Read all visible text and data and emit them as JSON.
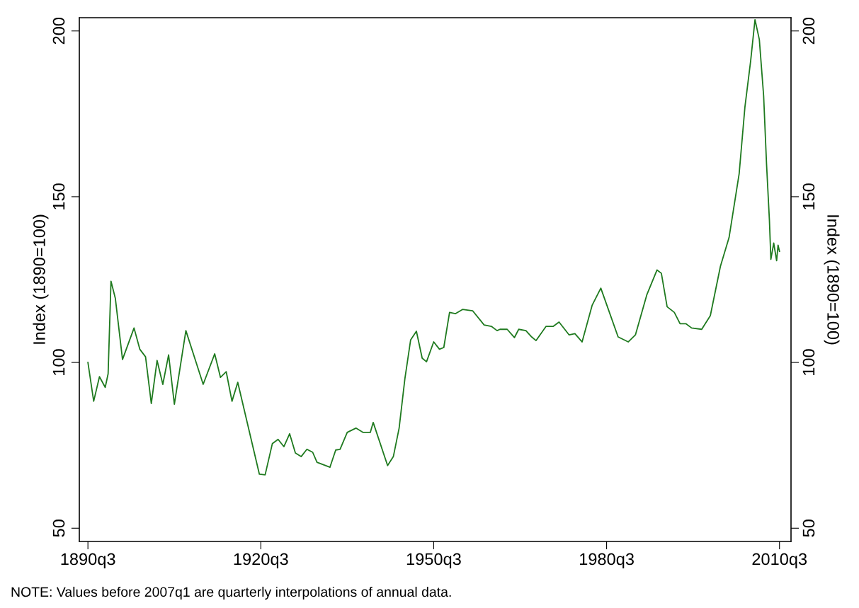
{
  "chart_data": {
    "type": "line",
    "ylabel": "Index (1890=100)",
    "y2label": "Index (1890=100)",
    "xlim": [
      "1889-01",
      "2012-07"
    ],
    "xticks": [
      {
        "value": "1890-07",
        "label": "1890q3"
      },
      {
        "value": "1920-07",
        "label": "1920q3"
      },
      {
        "value": "1950-07",
        "label": "1950q3"
      },
      {
        "value": "1980-07",
        "label": "1980q3"
      },
      {
        "value": "2010-07",
        "label": "2010q3"
      }
    ],
    "ylim": [
      46,
      204
    ],
    "yticks": [
      50,
      100,
      150,
      200
    ],
    "y2lim": [
      46,
      204
    ],
    "y2ticks": [
      50,
      100,
      150,
      200
    ],
    "grid": false,
    "legend": false,
    "marker": "none",
    "line_style": "solid",
    "annotations": [
      "NOTE: Values before 2007q1 are quarterly interpolations of annual data."
    ],
    "series": [
      {
        "color": "#1f7a1f",
        "x": [
          "1890-07",
          "1891-07",
          "1892-07",
          "1893-07",
          "1894-01",
          "1894-07",
          "1895-04",
          "1896-07",
          "1898-07",
          "1899-07",
          "1900-07",
          "1901-07",
          "1902-07",
          "1903-07",
          "1904-07",
          "1905-07",
          "1907-07",
          "1910-07",
          "1912-07",
          "1913-07",
          "1914-07",
          "1915-07",
          "1916-07",
          "1920-04",
          "1921-04",
          "1922-07",
          "1923-07",
          "1924-07",
          "1925-07",
          "1926-07",
          "1927-07",
          "1928-07",
          "1929-07",
          "1930-04",
          "1932-07",
          "1933-07",
          "1934-04",
          "1935-07",
          "1937-01",
          "1938-04",
          "1939-07",
          "1940-01",
          "1942-07",
          "1943-07",
          "1944-07",
          "1945-07",
          "1946-07",
          "1947-07",
          "1948-07",
          "1949-04",
          "1950-07",
          "1951-07",
          "1952-04",
          "1953-04",
          "1954-04",
          "1955-07",
          "1957-04",
          "1959-04",
          "1960-07",
          "1961-07",
          "1962-01",
          "1963-04",
          "1964-07",
          "1965-04",
          "1966-07",
          "1967-07",
          "1968-04",
          "1970-01",
          "1971-04",
          "1972-04",
          "1974-01",
          "1975-01",
          "1976-04",
          "1978-01",
          "1979-07",
          "1980-07",
          "1982-07",
          "1984-04",
          "1985-07",
          "1987-07",
          "1989-04",
          "1990-01",
          "1991-01",
          "1992-04",
          "1993-04",
          "1994-04",
          "1995-04",
          "1997-01",
          "1998-07",
          "2000-04",
          "2001-10",
          "2003-07",
          "2004-07",
          "2005-07",
          "2006-04",
          "2007-01",
          "2007-10",
          "2008-04",
          "2008-10",
          "2009-01",
          "2009-07",
          "2010-01",
          "2010-04",
          "2010-07"
        ],
        "values": [
          100,
          88.3,
          95.7,
          92.5,
          96.6,
          124.5,
          119.4,
          100.9,
          110.4,
          104,
          101.7,
          87.6,
          100.6,
          93.4,
          102.3,
          87.4,
          109.6,
          93.4,
          102.6,
          95.5,
          97.2,
          88.3,
          94,
          66.3,
          66.1,
          75.5,
          76.8,
          74.6,
          78.5,
          72.7,
          71.6,
          73.8,
          72.9,
          69.9,
          68.4,
          73.6,
          73.8,
          78.9,
          80.2,
          78.9,
          78.9,
          81.9,
          68.9,
          71.6,
          80.2,
          95.1,
          106.8,
          109.4,
          101.3,
          100.2,
          106.2,
          104,
          104.5,
          115.1,
          114.7,
          116,
          115.6,
          111.3,
          110.9,
          109.6,
          110,
          110,
          107.5,
          110,
          109.6,
          107.7,
          106.6,
          110.9,
          110.9,
          112.2,
          108.3,
          108.7,
          106.2,
          117.3,
          122.4,
          117.5,
          107.7,
          106.2,
          108.3,
          120.5,
          127.9,
          126.9,
          116.8,
          115.1,
          111.7,
          111.7,
          110.4,
          110,
          114.1,
          129,
          137.7,
          156.9,
          177,
          191,
          203.4,
          197.4,
          180.4,
          159.9,
          142.9,
          131.1,
          136,
          130.7,
          135.4,
          133.5
        ]
      }
    ]
  }
}
